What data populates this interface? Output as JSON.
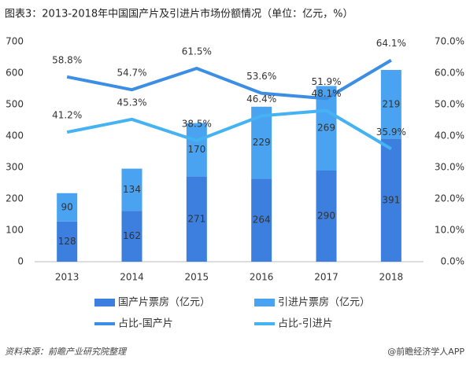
{
  "chart_data": {
    "type": "bar-line",
    "title": "图表3：2013-2018年中国国产片及引进片市场份额情况（单位：亿元，%）",
    "categories": [
      "2013",
      "2014",
      "2015",
      "2016",
      "2017",
      "2018"
    ],
    "series": [
      {
        "name": "国产片票房（亿元）",
        "type": "bar",
        "color": "#3d7fde",
        "values": [
          128,
          162,
          271,
          264,
          290,
          391
        ]
      },
      {
        "name": "引进片票房（亿元）",
        "type": "bar",
        "color": "#4aa3f0",
        "values": [
          90,
          134,
          170,
          229,
          269,
          219
        ]
      },
      {
        "name": "占比-国产片",
        "type": "line",
        "axis": "y2",
        "color": "#3c8ee4",
        "values": [
          58.8,
          54.7,
          61.5,
          53.6,
          51.9,
          64.1
        ],
        "value_labels": [
          "58.8%",
          "54.7%",
          "61.5%",
          "53.6%",
          "51.9%",
          "64.1%"
        ]
      },
      {
        "name": "占比-引进片",
        "type": "line",
        "axis": "y2",
        "color": "#44b2f3",
        "values": [
          41.2,
          45.3,
          38.5,
          46.4,
          48.1,
          35.9
        ],
        "value_labels": [
          "41.2%",
          "45.3%",
          "38.5%",
          "46.4%",
          "48.1%",
          "35.9%"
        ]
      }
    ],
    "ylim": [
      0,
      700
    ],
    "yticks": [
      0,
      100,
      200,
      300,
      400,
      500,
      600,
      700
    ],
    "y2lim": [
      0,
      70
    ],
    "y2ticks": [
      {
        "value": 0,
        "label": "0.0%"
      },
      {
        "value": 10,
        "label": "10.0%"
      },
      {
        "value": 20,
        "label": "20.0%"
      },
      {
        "value": 30,
        "label": "30.0%"
      },
      {
        "value": 40,
        "label": "40.0%"
      },
      {
        "value": 50,
        "label": "50.0%"
      },
      {
        "value": 60,
        "label": "60.0%"
      },
      {
        "value": 70,
        "label": "70.0%"
      }
    ],
    "source": "资料来源：前瞻产业研究院整理",
    "credit": "@前瞻经济学人APP"
  }
}
